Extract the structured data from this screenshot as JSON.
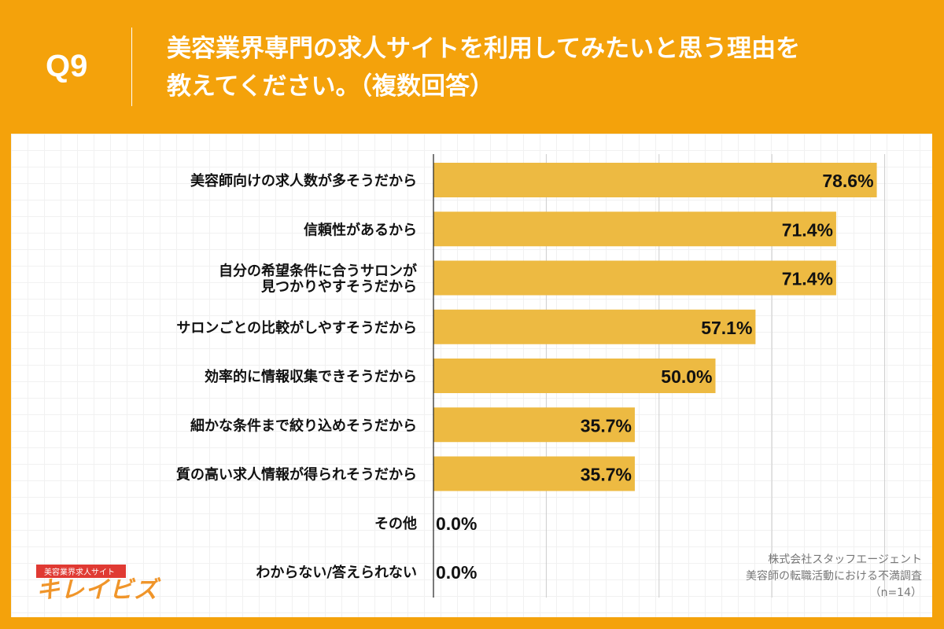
{
  "header": {
    "question": "Q9",
    "title": "美容業界専門の求人サイトを利用してみたいと思う理由を\n教えてください。（複数回答）"
  },
  "colors": {
    "background": "#F4A20B",
    "bar": "#EDBA42"
  },
  "chart_data": {
    "type": "bar",
    "orientation": "horizontal",
    "categories": [
      "美容師向けの求人数が多そうだから",
      "信頼性があるから",
      "自分の希望条件に合うサロンが\n見つかりやすそうだから",
      "サロンごとの比較がしやすそうだから",
      "効率的に情報収集できそうだから",
      "細かな条件まで絞り込めそうだから",
      "質の高い求人情報が得られそうだから",
      "その他",
      "わからない/答えられない"
    ],
    "values": [
      78.6,
      71.4,
      71.4,
      57.1,
      50.0,
      35.7,
      35.7,
      0.0,
      0.0
    ],
    "labels": [
      "78.6%",
      "71.4%",
      "71.4%",
      "57.1%",
      "50.0%",
      "35.7%",
      "35.7%",
      "0.0%",
      "0.0%"
    ],
    "xlim": [
      0,
      100
    ],
    "grid": true,
    "unit": "%"
  },
  "footer": {
    "credit": [
      "株式会社スタッフエージェント",
      "美容師の転職活動における不満調査",
      "（n=14）"
    ],
    "logo": {
      "tagline": "美容業界求人サイト",
      "name": "キレイビズ"
    }
  }
}
